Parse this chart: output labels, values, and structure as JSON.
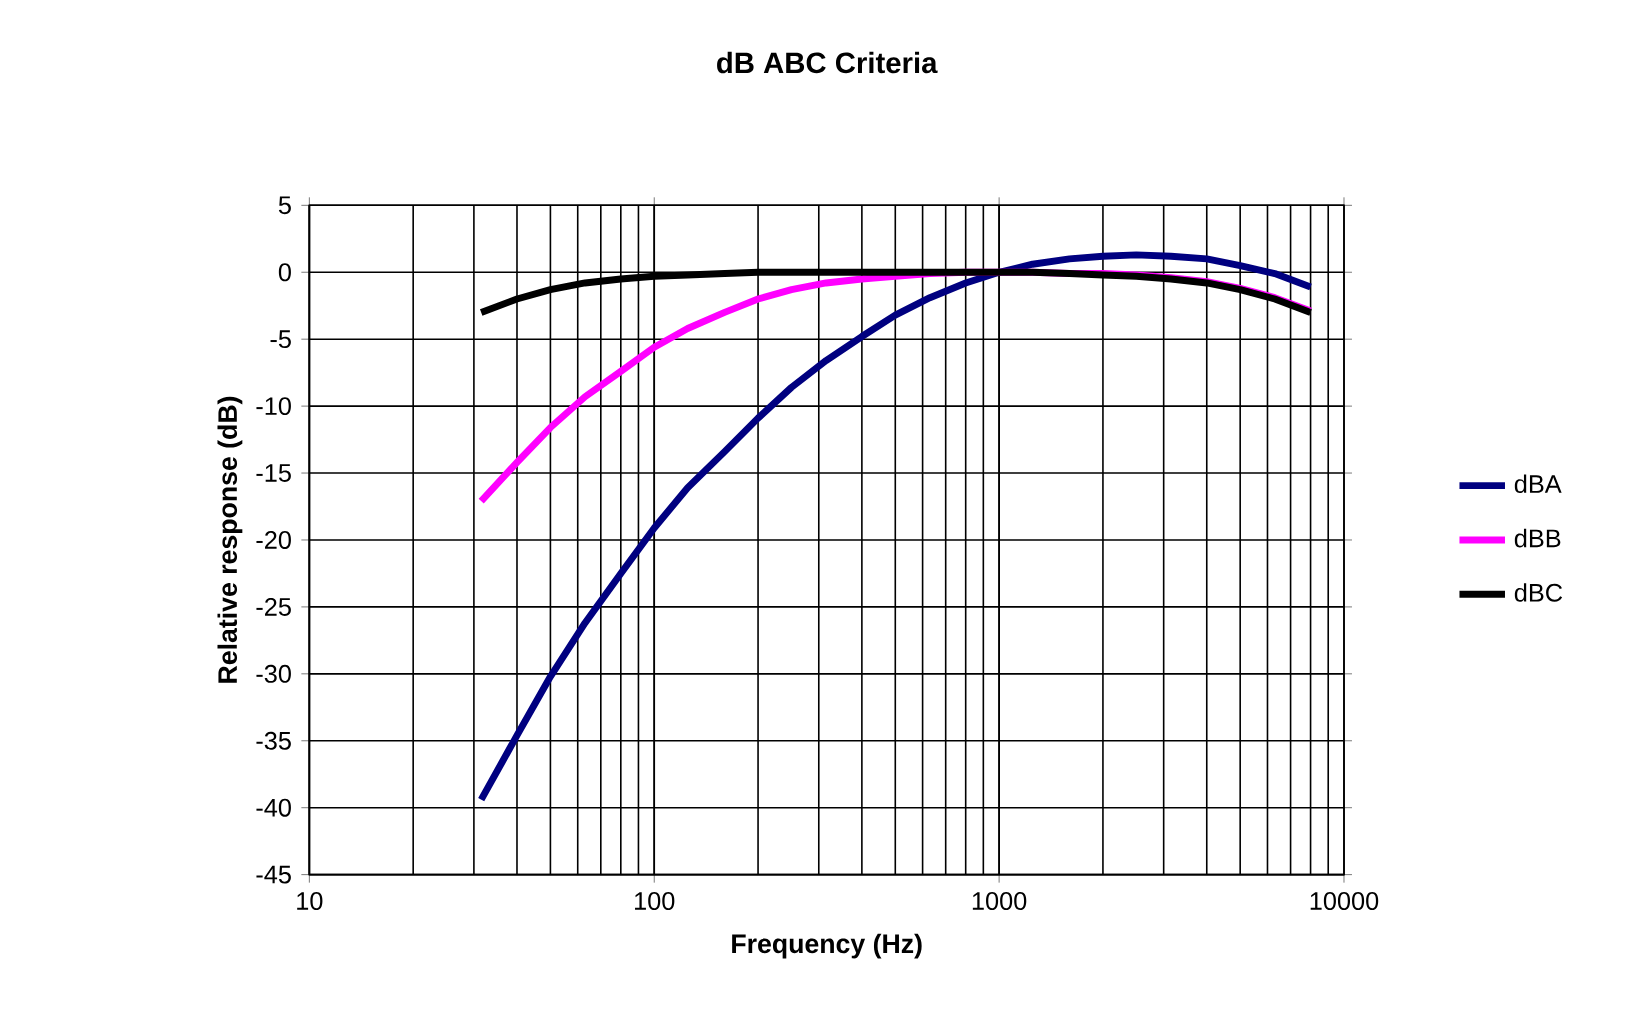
{
  "chart_data": {
    "type": "line",
    "title": "dB ABC Criteria",
    "xlabel": "Frequency (Hz)",
    "ylabel": "Relative response (dB)",
    "log": "x",
    "xlim": [
      10,
      10000
    ],
    "xticks": [
      10,
      100,
      1000,
      10000
    ],
    "ylim": [
      -45,
      5
    ],
    "yticks": [
      -45,
      -40,
      -35,
      -30,
      -25,
      -20,
      -15,
      -10,
      -5,
      0,
      5
    ],
    "grid": true,
    "legend": "right",
    "marker": "none",
    "line_style": "solid",
    "x": [
      31.5,
      40,
      50,
      63,
      80,
      100,
      125,
      160,
      200,
      250,
      315,
      400,
      500,
      630,
      800,
      1000,
      1250,
      1600,
      2000,
      2500,
      3150,
      4000,
      5000,
      6300,
      8000
    ],
    "series": [
      {
        "name": "dBA",
        "color": "#000080",
        "values": [
          -39.4,
          -34.6,
          -30.2,
          -26.2,
          -22.5,
          -19.1,
          -16.1,
          -13.4,
          -10.9,
          -8.6,
          -6.6,
          -4.8,
          -3.2,
          -1.9,
          -0.8,
          0,
          0.6,
          1.0,
          1.2,
          1.3,
          1.2,
          1.0,
          0.5,
          -0.1,
          -1.1
        ]
      },
      {
        "name": "dBB",
        "color": "#ff00ff",
        "values": [
          -17.1,
          -14.2,
          -11.6,
          -9.3,
          -7.4,
          -5.6,
          -4.2,
          -3.0,
          -2.0,
          -1.3,
          -0.8,
          -0.5,
          -0.3,
          -0.1,
          0,
          0,
          0,
          -0.1,
          -0.1,
          -0.2,
          -0.4,
          -0.7,
          -1.2,
          -1.9,
          -2.9
        ]
      },
      {
        "name": "dBC",
        "color": "#000000",
        "values": [
          -3.0,
          -2.0,
          -1.3,
          -0.8,
          -0.5,
          -0.3,
          -0.2,
          -0.1,
          0,
          0,
          0,
          0,
          0,
          0,
          0,
          0,
          0,
          -0.1,
          -0.2,
          -0.3,
          -0.5,
          -0.8,
          -1.3,
          -2.0,
          -3.0
        ]
      }
    ]
  }
}
